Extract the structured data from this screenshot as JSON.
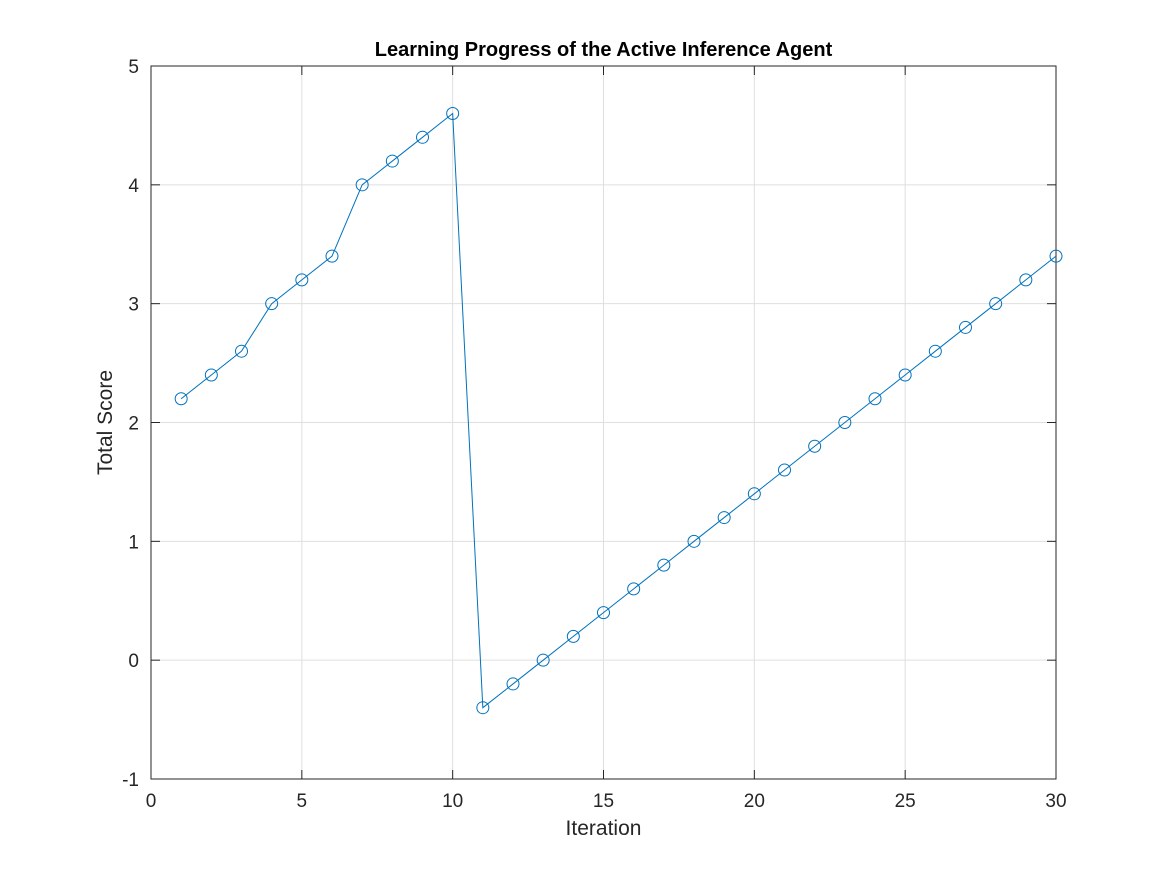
{
  "chart_data": {
    "type": "line",
    "title": "Learning Progress of the Active Inference Agent",
    "xlabel": "Iteration",
    "ylabel": "Total Score",
    "xlim": [
      0,
      30
    ],
    "ylim": [
      -1,
      5
    ],
    "xticks": [
      "0",
      "5",
      "10",
      "15",
      "20",
      "25",
      "30"
    ],
    "yticks": [
      "-1",
      "0",
      "1",
      "2",
      "3",
      "4",
      "5"
    ],
    "grid": true,
    "legend": "none",
    "marker": "circle",
    "series": [
      {
        "color": "#0072BD",
        "x": [
          1,
          2,
          3,
          4,
          5,
          6,
          7,
          8,
          9,
          10,
          11,
          12,
          13,
          14,
          15,
          16,
          17,
          18,
          19,
          20,
          21,
          22,
          23,
          24,
          25,
          26,
          27,
          28,
          29,
          30
        ],
        "values": [
          2.2,
          2.4,
          2.6,
          3.0,
          3.2,
          3.4,
          4.0,
          4.2,
          4.4,
          4.6,
          -0.4,
          -0.2,
          0.0,
          0.2,
          0.4,
          0.6,
          0.8,
          1.0,
          1.2,
          1.4,
          1.6,
          1.8,
          2.0,
          2.2,
          2.4,
          2.6,
          2.8,
          3.0,
          3.2,
          3.4
        ]
      }
    ]
  }
}
